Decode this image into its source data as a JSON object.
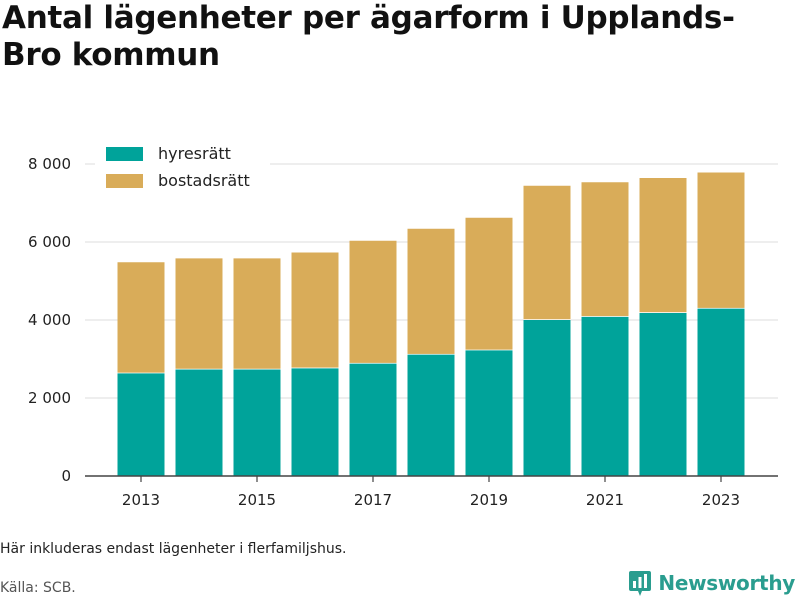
{
  "title": "Antal lägenheter per ägarform i Upplands-Bro kommun",
  "footnote": "Här inkluderas endast lägenheter i flerfamiljshus.",
  "source": "Källa: SCB.",
  "brand": {
    "name": "Newsworthy",
    "icon": "newsworthy-logo-icon",
    "color": "#2a9d8f"
  },
  "chart_data": {
    "type": "bar",
    "stacked": true,
    "categories": [
      "2013",
      "2014",
      "2015",
      "2016",
      "2017",
      "2018",
      "2019",
      "2020",
      "2021",
      "2022",
      "2023"
    ],
    "x_tick_labels": [
      "2013",
      "2015",
      "2017",
      "2019",
      "2021",
      "2023"
    ],
    "y_tick_labels": [
      "0",
      "2 000",
      "4 000",
      "6 000",
      "8 000"
    ],
    "y_ticks": [
      0,
      2000,
      4000,
      6000,
      8000
    ],
    "ylim": [
      0,
      8500
    ],
    "grid": true,
    "legend_position": "top-left",
    "series": [
      {
        "name": "hyresrätt",
        "color": "#00a39a",
        "values": [
          2650,
          2750,
          2750,
          2780,
          2900,
          3130,
          3240,
          4020,
          4100,
          4200,
          4310
        ]
      },
      {
        "name": "bostadsrätt",
        "color": "#d9ac59",
        "values": [
          2850,
          2850,
          2850,
          2970,
          3150,
          3230,
          3400,
          3440,
          3450,
          3460,
          3490
        ]
      }
    ]
  }
}
